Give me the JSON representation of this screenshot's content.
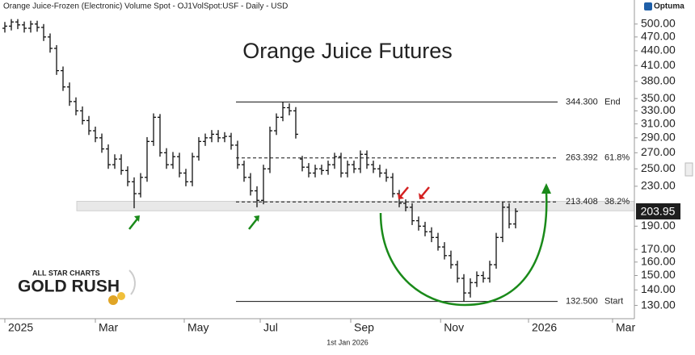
{
  "chart_data": {
    "type": "ohlc",
    "header": "Orange Juice-Frozen (Electronic) Volume Spot - OJ1VolSpot:USF - Daily - USD",
    "brand": "Optuma",
    "title": "Orange Juice Futures",
    "watermark": [
      "ALL STAR CHARTS",
      "GOLD RUSH"
    ],
    "cursor_date": "1st Jan 2026",
    "log_scale": true,
    "color": "#111111",
    "open": [
      490,
      495,
      505,
      498,
      490,
      500,
      492,
      470,
      445,
      400,
      370,
      345,
      330,
      315,
      300,
      290,
      275,
      255,
      262,
      248,
      235,
      222,
      240,
      285,
      320,
      270,
      255,
      265,
      245,
      235,
      265,
      285,
      290,
      295,
      290,
      292,
      280,
      255,
      240,
      225,
      215,
      250,
      300,
      320,
      335,
      330,
      262,
      252,
      245,
      250,
      248,
      255,
      265,
      245,
      255,
      250,
      268,
      255,
      250,
      245,
      240,
      222,
      212,
      208,
      195,
      190,
      185,
      180,
      172,
      165,
      158,
      148,
      138,
      145,
      150,
      148,
      158,
      180,
      208,
      192
    ],
    "high": [
      505,
      512,
      512,
      506,
      508,
      508,
      500,
      478,
      452,
      408,
      378,
      352,
      337,
      322,
      306,
      296,
      281,
      268,
      268,
      253,
      240,
      245,
      291,
      326,
      325,
      276,
      271,
      270,
      250,
      270,
      291,
      296,
      301,
      301,
      298,
      297,
      286,
      260,
      245,
      230,
      255,
      306,
      326,
      344.3,
      342,
      336,
      266,
      257,
      255,
      255,
      260,
      270,
      270,
      260,
      260,
      273,
      273,
      260,
      255,
      250,
      245,
      226,
      216,
      212,
      199,
      194,
      189,
      184,
      176,
      169,
      161,
      151,
      148,
      153,
      153,
      161,
      184,
      213,
      212,
      207
    ],
    "low": [
      480,
      485,
      488,
      480,
      480,
      482,
      461,
      436,
      392,
      363,
      338,
      323,
      309,
      294,
      284,
      270,
      250,
      250,
      243,
      230,
      207,
      218,
      235,
      279,
      265,
      250,
      250,
      240,
      230,
      230,
      260,
      279,
      284,
      284,
      284,
      274,
      250,
      235,
      220,
      208,
      211,
      245,
      294,
      314,
      323,
      289,
      247,
      240,
      240,
      243,
      243,
      250,
      240,
      240,
      245,
      245,
      250,
      245,
      240,
      235,
      218,
      208,
      204,
      191,
      186,
      181,
      176,
      169,
      162,
      155,
      145,
      132.5,
      135,
      142,
      145,
      145,
      155,
      176,
      188,
      188
    ],
    "close": [
      495,
      505,
      498,
      490,
      500,
      492,
      470,
      445,
      400,
      370,
      345,
      330,
      315,
      300,
      290,
      275,
      255,
      262,
      248,
      235,
      222,
      240,
      285,
      320,
      270,
      255,
      265,
      245,
      235,
      265,
      285,
      290,
      295,
      290,
      292,
      280,
      255,
      240,
      225,
      215,
      250,
      300,
      320,
      335,
      330,
      295,
      252,
      245,
      250,
      248,
      255,
      265,
      245,
      255,
      250,
      268,
      255,
      250,
      245,
      240,
      222,
      212,
      208,
      195,
      190,
      185,
      180,
      172,
      165,
      158,
      148,
      138,
      145,
      150,
      148,
      158,
      180,
      208,
      192,
      203.95
    ],
    "xlim": [
      -0.75,
      96.75
    ],
    "xticks": [
      {
        "value": 0,
        "label": "2025"
      },
      {
        "value": 14,
        "label": "Mar"
      },
      {
        "value": 27.75,
        "label": "May"
      },
      {
        "value": 39.5,
        "label": "Jul"
      },
      {
        "value": 53.5,
        "label": "Sep"
      },
      {
        "value": 67.4,
        "label": "Nov"
      },
      {
        "value": 81,
        "label": "2026"
      },
      {
        "value": 94,
        "label": "Mar"
      }
    ],
    "ylim": [
      122,
      561
    ],
    "yticks": [
      {
        "value": 500,
        "label": "500.00"
      },
      {
        "value": 470,
        "label": "470.00"
      },
      {
        "value": 440,
        "label": "440.00"
      },
      {
        "value": 410,
        "label": "410.00"
      },
      {
        "value": 380,
        "label": "380.00"
      },
      {
        "value": 350,
        "label": "350.00"
      },
      {
        "value": 330,
        "label": "330.00"
      },
      {
        "value": 310,
        "label": "310.00"
      },
      {
        "value": 290,
        "label": "290.00"
      },
      {
        "value": 270,
        "label": "270.00"
      },
      {
        "value": 250,
        "label": "250.00"
      },
      {
        "value": 230,
        "label": "230.00"
      },
      {
        "value": 190,
        "label": "190.00"
      },
      {
        "value": 170,
        "label": "170.00"
      },
      {
        "value": 160,
        "label": "160.00"
      },
      {
        "value": 150,
        "label": "150.00"
      },
      {
        "value": 140,
        "label": "140.00"
      },
      {
        "value": 130,
        "label": "130.00"
      }
    ],
    "levels": [
      {
        "value": 344.3,
        "label": "344.300",
        "name": "End",
        "style": "solid"
      },
      {
        "value": 263.392,
        "label": "263.392",
        "name": "61.8%",
        "style": "dashed"
      },
      {
        "value": 213.408,
        "label": "213.408",
        "name": "38.2%",
        "style": "dashed"
      },
      {
        "value": 132.5,
        "label": "132.500",
        "name": "Start",
        "style": "solid"
      }
    ],
    "zone": [
      204.5,
      214
    ]
  }
}
